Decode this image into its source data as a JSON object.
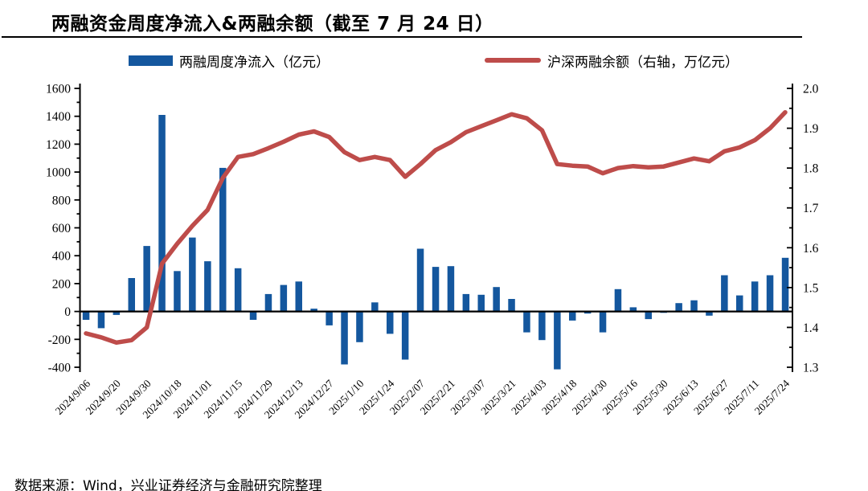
{
  "title": "两融资金周度净流入&两融余额（截至 7 月 24 日）",
  "footer": "数据来源：Wind，兴业证券经济与金融研究院整理",
  "legend": {
    "bar": {
      "label": "两融周度净流入（亿元）",
      "color": "#14579E"
    },
    "line": {
      "label": "沪深两融余额（右轴，万亿元）",
      "color": "#BE4C4A"
    }
  },
  "chart_data": {
    "type": "bar+line combo",
    "grid": "off",
    "legend_position": "top",
    "categories": [
      "2024/9/06",
      "",
      "2024/9/20",
      "",
      "2024/9/30",
      "",
      "2024/10/18",
      "",
      "2024/11/01",
      "",
      "2024/11/15",
      "",
      "2024/11/29",
      "",
      "2024/12/13",
      "",
      "2024/12/27",
      "",
      "2025/1/10",
      "",
      "2025/1/24",
      "",
      "2025/2/07",
      "",
      "2025/2/21",
      "",
      "2025/3/07",
      "",
      "2025/3/21",
      "",
      "2025/4/03",
      "",
      "2025/4/18",
      "",
      "2025/4/30",
      "",
      "2025/5/16",
      "",
      "2025/5/30",
      "",
      "2025/6/13",
      "",
      "2025/6/27",
      "",
      "2025/7/11",
      "",
      "2025/7/24"
    ],
    "series": [
      {
        "name": "两融周度净流入（亿元）",
        "type": "bar",
        "axis": "left",
        "values": [
          -60,
          -120,
          -25,
          240,
          470,
          1410,
          290,
          530,
          360,
          1030,
          310,
          -60,
          125,
          190,
          215,
          20,
          -100,
          -380,
          -220,
          65,
          -160,
          -345,
          450,
          320,
          325,
          125,
          120,
          175,
          90,
          -150,
          -205,
          -415,
          -65,
          -15,
          -150,
          160,
          30,
          -55,
          -10,
          60,
          80,
          -30,
          260,
          115,
          215,
          260,
          385
        ]
      },
      {
        "name": "沪深两融余额（右轴，万亿元）",
        "type": "line",
        "axis": "right",
        "values": [
          1.385,
          1.375,
          1.362,
          1.368,
          1.4,
          1.56,
          1.61,
          1.655,
          1.695,
          1.775,
          1.828,
          1.835,
          1.85,
          1.866,
          1.884,
          1.892,
          1.878,
          1.84,
          1.82,
          1.828,
          1.82,
          1.778,
          1.81,
          1.845,
          1.865,
          1.89,
          1.905,
          1.92,
          1.935,
          1.925,
          1.895,
          1.81,
          1.806,
          1.804,
          1.787,
          1.8,
          1.805,
          1.802,
          1.804,
          1.814,
          1.824,
          1.817,
          1.842,
          1.852,
          1.87,
          1.9,
          1.94
        ]
      }
    ],
    "left_axis": {
      "min": -400,
      "max": 1600,
      "tick_step": 200,
      "ticks": [
        "1600",
        "1400",
        "1200",
        "1000",
        "800",
        "600",
        "400",
        "200",
        "0",
        "-200",
        "-400"
      ]
    },
    "right_axis": {
      "min": 1.3,
      "max": 2.0,
      "tick_step": 0.1,
      "ticks": [
        "2.0",
        "1.9",
        "1.8",
        "1.7",
        "1.6",
        "1.5",
        "1.4",
        "1.3"
      ]
    }
  }
}
